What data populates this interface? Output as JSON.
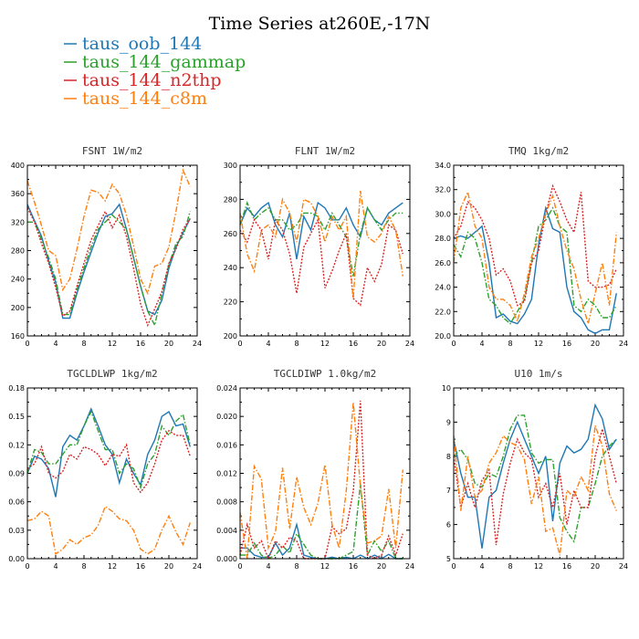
{
  "title": "Time Series at260E,-17N",
  "legend": [
    {
      "label": "taus_oob_144",
      "color": "#1f77b4",
      "dash": "solid"
    },
    {
      "label": "taus_144_gammap",
      "color": "#2ca02c",
      "dash": "dashdot"
    },
    {
      "label": "taus_144_n2thp",
      "color": "#d62728",
      "dash": "dotted"
    },
    {
      "label": "taus_144_c8m",
      "color": "#ff7f0e",
      "dash": "dashdot"
    }
  ],
  "chart_data": [
    {
      "type": "line",
      "title": "FSNT  1W/m2",
      "xlim": [
        0,
        24
      ],
      "xticks": [
        0,
        4,
        8,
        12,
        16,
        20,
        24
      ],
      "ylim": [
        160,
        400
      ],
      "yticks": [
        160,
        200,
        240,
        280,
        320,
        360,
        400
      ],
      "ytick_labels": [
        "160",
        "200",
        "240",
        "280",
        "320",
        "360",
        "400"
      ],
      "x": [
        0,
        1,
        2,
        3,
        4,
        5,
        6,
        7,
        8,
        9,
        10,
        11,
        12,
        13,
        14,
        15,
        16,
        17,
        18,
        19,
        20,
        21,
        22,
        23
      ],
      "series": [
        {
          "name": "taus_oob_144",
          "values": [
            345,
            322,
            300,
            265,
            235,
            185,
            185,
            220,
            250,
            278,
            305,
            328,
            332,
            345,
            310,
            270,
            230,
            195,
            190,
            210,
            255,
            285,
            305,
            325
          ]
        },
        {
          "name": "taus_144_gammap",
          "values": [
            320,
            320,
            295,
            270,
            240,
            190,
            190,
            225,
            255,
            285,
            310,
            320,
            330,
            320,
            310,
            270,
            230,
            195,
            175,
            220,
            260,
            290,
            300,
            335
          ]
        },
        {
          "name": "taus_144_n2thp",
          "values": [
            340,
            320,
            290,
            262,
            228,
            188,
            195,
            230,
            262,
            295,
            315,
            335,
            312,
            330,
            300,
            255,
            205,
            175,
            198,
            222,
            262,
            282,
            310,
            325
          ]
        },
        {
          "name": "taus_144_c8m",
          "values": [
            378,
            348,
            315,
            280,
            273,
            225,
            240,
            282,
            328,
            365,
            362,
            350,
            373,
            360,
            330,
            287,
            240,
            220,
            258,
            262,
            285,
            335,
            393,
            370
          ]
        }
      ]
    },
    {
      "type": "line",
      "title": "FLNT  1W/m2",
      "xlim": [
        0,
        24
      ],
      "xticks": [
        0,
        4,
        8,
        12,
        16,
        20,
        24
      ],
      "ylim": [
        200,
        300
      ],
      "yticks": [
        200,
        220,
        240,
        260,
        280,
        300
      ],
      "ytick_labels": [
        "200",
        "220",
        "240",
        "260",
        "280",
        "300"
      ],
      "x": [
        0,
        1,
        2,
        3,
        4,
        5,
        6,
        7,
        8,
        9,
        10,
        11,
        12,
        13,
        14,
        15,
        16,
        17,
        18,
        19,
        20,
        21,
        22,
        23
      ],
      "series": [
        {
          "name": "taus_oob_144",
          "values": [
            265,
            275,
            270,
            275,
            278,
            265,
            258,
            272,
            245,
            270,
            262,
            278,
            275,
            268,
            268,
            275,
            265,
            258,
            275,
            268,
            265,
            272,
            275,
            278
          ]
        },
        {
          "name": "taus_144_gammap",
          "values": [
            265,
            278,
            268,
            272,
            275,
            268,
            268,
            262,
            265,
            272,
            272,
            270,
            262,
            272,
            265,
            258,
            235,
            260,
            275,
            268,
            262,
            268,
            272,
            272
          ]
        },
        {
          "name": "taus_144_n2thp",
          "values": [
            262,
            255,
            268,
            262,
            245,
            268,
            262,
            248,
            225,
            252,
            260,
            268,
            228,
            238,
            250,
            260,
            222,
            218,
            240,
            232,
            242,
            265,
            262,
            248
          ]
        },
        {
          "name": "taus_144_c8m",
          "values": [
            272,
            248,
            238,
            262,
            265,
            258,
            280,
            272,
            255,
            280,
            278,
            270,
            255,
            270,
            262,
            270,
            222,
            285,
            258,
            255,
            260,
            270,
            262,
            235
          ]
        }
      ]
    },
    {
      "type": "line",
      "title": "TMQ  1kg/m2",
      "xlim": [
        0,
        24
      ],
      "xticks": [
        0,
        4,
        8,
        12,
        16,
        20,
        24
      ],
      "ylim": [
        20,
        34
      ],
      "yticks": [
        20,
        22,
        24,
        26,
        28,
        30,
        32,
        34
      ],
      "ytick_labels": [
        "20.0",
        "22.0",
        "24.0",
        "26.0",
        "28.0",
        "30.0",
        "32.0",
        "34.0"
      ],
      "x": [
        0,
        1,
        2,
        3,
        4,
        5,
        6,
        7,
        8,
        9,
        10,
        11,
        12,
        13,
        14,
        15,
        16,
        17,
        18,
        19,
        20,
        21,
        22,
        23
      ],
      "series": [
        {
          "name": "taus_oob_144",
          "values": [
            28.0,
            28.2,
            28.0,
            28.5,
            29.0,
            26.0,
            21.5,
            21.8,
            21.2,
            21.0,
            21.8,
            23.0,
            27.5,
            30.5,
            28.8,
            28.5,
            24.0,
            22.0,
            21.5,
            20.5,
            20.2,
            20.5,
            20.5,
            23.5
          ]
        },
        {
          "name": "taus_144_gammap",
          "values": [
            27.5,
            26.5,
            28.5,
            28.0,
            26.0,
            23.0,
            22.5,
            21.5,
            21.0,
            22.0,
            23.0,
            26.0,
            29.0,
            29.5,
            30.5,
            29.0,
            28.5,
            22.5,
            22.0,
            23.0,
            22.5,
            21.5,
            21.5,
            22.5
          ]
        },
        {
          "name": "taus_144_n2thp",
          "values": [
            28.0,
            29.0,
            31.0,
            30.5,
            29.5,
            28.0,
            25.0,
            25.5,
            24.5,
            22.5,
            22.8,
            26.0,
            27.0,
            30.0,
            32.3,
            31.0,
            29.5,
            28.5,
            31.8,
            24.5,
            24.0,
            24.0,
            24.2,
            25.5
          ]
        },
        {
          "name": "taus_144_c8m",
          "values": [
            26.0,
            30.5,
            31.8,
            29.0,
            28.0,
            24.0,
            23.0,
            23.0,
            22.5,
            21.2,
            23.5,
            26.5,
            28.0,
            30.0,
            31.5,
            29.0,
            27.0,
            25.5,
            23.0,
            21.0,
            23.5,
            26.0,
            22.5,
            28.5
          ]
        }
      ]
    },
    {
      "type": "line",
      "title": "TGCLDLWP  1kg/m2",
      "xlim": [
        0,
        24
      ],
      "xticks": [
        0,
        4,
        8,
        12,
        16,
        20,
        24
      ],
      "ylim": [
        0,
        0.18
      ],
      "yticks": [
        0,
        0.03,
        0.06,
        0.09,
        0.12,
        0.15,
        0.18
      ],
      "ytick_labels": [
        "0.00",
        "0.03",
        "0.06",
        "0.09",
        "0.12",
        "0.15",
        "0.18"
      ],
      "x": [
        0,
        1,
        2,
        3,
        4,
        5,
        6,
        7,
        8,
        9,
        10,
        11,
        12,
        13,
        14,
        15,
        16,
        17,
        18,
        19,
        20,
        21,
        22,
        23
      ],
      "series": [
        {
          "name": "taus_oob_144",
          "values": [
            0.09,
            0.108,
            0.105,
            0.095,
            0.065,
            0.118,
            0.13,
            0.125,
            0.14,
            0.158,
            0.14,
            0.12,
            0.11,
            0.08,
            0.105,
            0.09,
            0.078,
            0.11,
            0.125,
            0.15,
            0.155,
            0.14,
            0.142,
            0.118
          ]
        },
        {
          "name": "taus_144_gammap",
          "values": [
            0.09,
            0.115,
            0.112,
            0.1,
            0.1,
            0.11,
            0.12,
            0.12,
            0.14,
            0.155,
            0.135,
            0.115,
            0.115,
            0.09,
            0.1,
            0.095,
            0.075,
            0.1,
            0.11,
            0.14,
            0.13,
            0.145,
            0.152,
            0.12
          ]
        },
        {
          "name": "taus_144_n2thp",
          "values": [
            0.095,
            0.1,
            0.118,
            0.09,
            0.085,
            0.092,
            0.11,
            0.105,
            0.118,
            0.115,
            0.11,
            0.098,
            0.11,
            0.108,
            0.12,
            0.08,
            0.07,
            0.08,
            0.1,
            0.125,
            0.135,
            0.13,
            0.13,
            0.108
          ]
        },
        {
          "name": "taus_144_c8m",
          "values": [
            0.04,
            0.042,
            0.05,
            0.045,
            0.005,
            0.01,
            0.02,
            0.015,
            0.022,
            0.025,
            0.035,
            0.055,
            0.05,
            0.042,
            0.04,
            0.03,
            0.01,
            0.005,
            0.01,
            0.03,
            0.045,
            0.028,
            0.015,
            0.038
          ]
        }
      ]
    },
    {
      "type": "line",
      "title": "TGCLDIWP  1.0kg/m2",
      "xlim": [
        0,
        24
      ],
      "xticks": [
        0,
        4,
        8,
        12,
        16,
        20,
        24
      ],
      "ylim": [
        0,
        0.024
      ],
      "yticks": [
        0,
        0.004,
        0.008,
        0.012,
        0.016,
        0.02,
        0.024
      ],
      "ytick_labels": [
        "0.000",
        "0.004",
        "0.008",
        "0.012",
        "0.016",
        "0.020",
        "0.024"
      ],
      "x": [
        0,
        1,
        2,
        3,
        4,
        5,
        6,
        7,
        8,
        9,
        10,
        11,
        12,
        13,
        14,
        15,
        16,
        17,
        18,
        19,
        20,
        21,
        22,
        23
      ],
      "series": [
        {
          "name": "taus_oob_144",
          "values": [
            0.0015,
            0.0015,
            0.0005,
            0.0002,
            0.0002,
            0.0022,
            0.0005,
            0.0015,
            0.0048,
            0.0005,
            0.0002,
            0.0,
            0.0,
            0.0002,
            0.0,
            0.0002,
            0.0,
            0.0005,
            0.0,
            0.0005,
            0.0,
            0.0006,
            0.0,
            0.0
          ]
        },
        {
          "name": "taus_144_gammap",
          "values": [
            0.0005,
            0.0005,
            0.0022,
            0.0005,
            0.0,
            0.0005,
            0.0018,
            0.0008,
            0.0035,
            0.002,
            0.0005,
            0.0,
            0.0,
            0.0,
            0.0,
            0.0005,
            0.001,
            0.0105,
            0.0005,
            0.0025,
            0.001,
            0.0025,
            0.0,
            0.0
          ]
        },
        {
          "name": "taus_144_n2thp",
          "values": [
            0.0005,
            0.0048,
            0.0015,
            0.0025,
            0.0,
            0.0025,
            0.0015,
            0.003,
            0.0025,
            0.0,
            0.0,
            0.0,
            0.0,
            0.0045,
            0.0035,
            0.0042,
            0.0095,
            0.0222,
            0.0005,
            0.0,
            0.0005,
            0.0032,
            0.0005,
            0.0035
          ]
        },
        {
          "name": "taus_144_c8m",
          "values": [
            0.0065,
            0.0,
            0.013,
            0.0112,
            0.0015,
            0.0038,
            0.0128,
            0.0042,
            0.0115,
            0.0072,
            0.0048,
            0.0078,
            0.0132,
            0.0048,
            0.0015,
            0.0095,
            0.022,
            0.0102,
            0.0022,
            0.0025,
            0.0032,
            0.0098,
            0.0015,
            0.0125
          ]
        }
      ]
    },
    {
      "type": "line",
      "title": "U10  1m/s",
      "xlim": [
        0,
        24
      ],
      "xticks": [
        0,
        4,
        8,
        12,
        16,
        20,
        24
      ],
      "ylim": [
        5,
        10
      ],
      "yticks": [
        5,
        6,
        7,
        8,
        9,
        10
      ],
      "ytick_labels": [
        "5",
        "6",
        "7",
        "8",
        "9",
        "10"
      ],
      "x": [
        0,
        1,
        2,
        3,
        4,
        5,
        6,
        7,
        8,
        9,
        10,
        11,
        12,
        13,
        14,
        15,
        16,
        17,
        18,
        19,
        20,
        21,
        22,
        23
      ],
      "series": [
        {
          "name": "taus_oob_144",
          "values": [
            8.5,
            7.5,
            6.8,
            6.8,
            5.3,
            6.8,
            7.0,
            7.8,
            8.5,
            9.0,
            8.5,
            8.0,
            7.5,
            8.0,
            6.1,
            7.8,
            8.3,
            8.1,
            8.2,
            8.5,
            9.5,
            9.1,
            8.2,
            8.5
          ]
        },
        {
          "name": "taus_144_gammap",
          "values": [
            8.0,
            8.2,
            7.9,
            7.2,
            7.1,
            7.5,
            7.4,
            8.0,
            8.8,
            9.2,
            9.2,
            8.1,
            7.8,
            7.9,
            7.9,
            6.2,
            5.8,
            5.5,
            6.5,
            6.5,
            7.2,
            8.0,
            8.3,
            8.5
          ]
        },
        {
          "name": "taus_144_n2thp",
          "values": [
            8.0,
            6.5,
            7.2,
            6.5,
            7.3,
            7.6,
            5.4,
            6.9,
            7.8,
            8.5,
            8.1,
            7.9,
            6.8,
            7.2,
            6.5,
            7.5,
            6.0,
            7.0,
            6.5,
            6.5,
            8.0,
            8.8,
            8.0,
            7.2
          ]
        },
        {
          "name": "taus_144_c8m",
          "values": [
            8.6,
            6.4,
            8.0,
            6.8,
            7.0,
            7.8,
            8.1,
            8.6,
            8.4,
            8.3,
            7.9,
            6.6,
            7.4,
            5.8,
            5.9,
            5.1,
            7.0,
            6.8,
            7.4,
            7.0,
            8.9,
            8.3,
            6.9,
            6.4
          ]
        }
      ]
    }
  ]
}
